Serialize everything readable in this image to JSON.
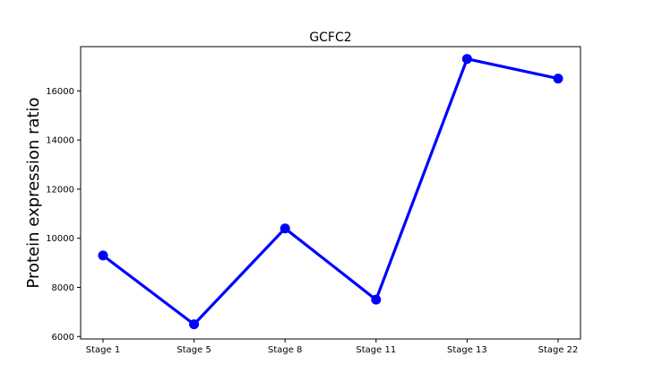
{
  "chart_data": {
    "type": "line",
    "title": "GCFC2",
    "xlabel": "",
    "ylabel": "Protein expression ratio",
    "categories": [
      "Stage 1",
      "Stage 5",
      "Stage 8",
      "Stage 11",
      "Stage 13",
      "Stage 22"
    ],
    "series": [
      {
        "values": [
          9300,
          6500,
          10400,
          7500,
          17300,
          16500
        ],
        "color": "#0000ff"
      }
    ],
    "ylim": [
      5900,
      17800
    ],
    "yticks": [
      6000,
      8000,
      10000,
      12000,
      14000,
      16000
    ],
    "grid": false,
    "legend": "none"
  }
}
